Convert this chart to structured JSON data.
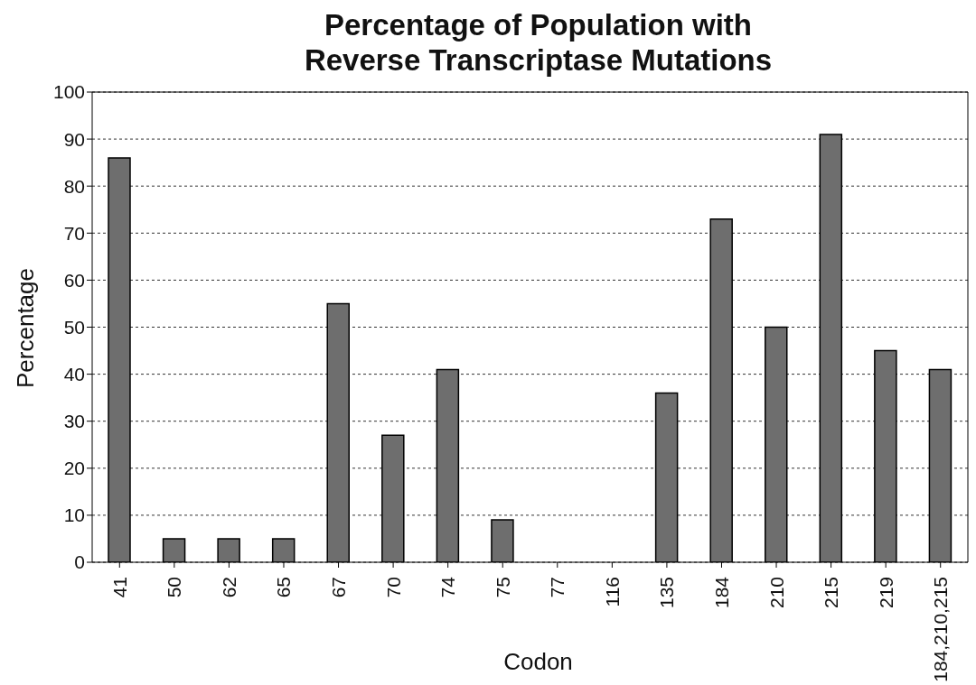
{
  "chart_data": {
    "type": "bar",
    "title": "Percentage of Population with\nReverse Transcriptase Mutations",
    "xlabel": "Codon",
    "ylabel": "Percentage",
    "categories": [
      "41",
      "50",
      "62",
      "65",
      "67",
      "70",
      "74",
      "75",
      "77",
      "116",
      "135",
      "184",
      "210",
      "215",
      "219",
      "184,210,215"
    ],
    "values": [
      86,
      5,
      5,
      5,
      55,
      27,
      41,
      9,
      0,
      0,
      36,
      73,
      50,
      91,
      45,
      41
    ],
    "color": "#6e6e6e",
    "ylim": [
      0,
      100
    ],
    "yticks": [
      0,
      10,
      20,
      30,
      40,
      50,
      60,
      70,
      80,
      90,
      100
    ],
    "grid": "y"
  }
}
